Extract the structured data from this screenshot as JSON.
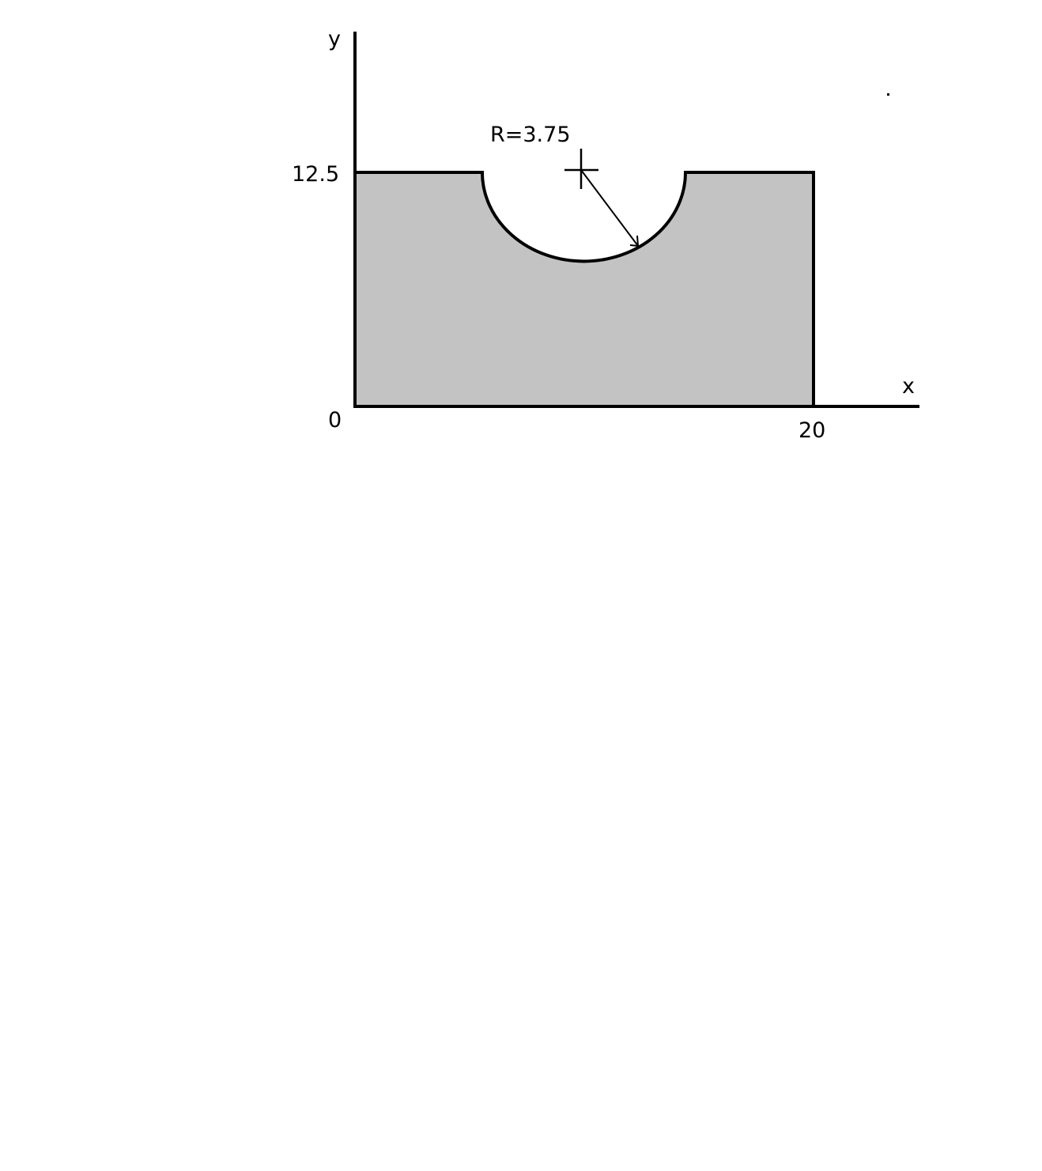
{
  "diagram": {
    "axes": {
      "x_label": "x",
      "y_label": "y"
    },
    "ticks": {
      "origin": "0",
      "x_max": "20",
      "y_max": "12.5"
    },
    "notch": {
      "radius_label": "R=3.75"
    },
    "colors": {
      "fill": "#c3c3c3",
      "stroke": "#000000",
      "background": "#ffffff"
    }
  }
}
